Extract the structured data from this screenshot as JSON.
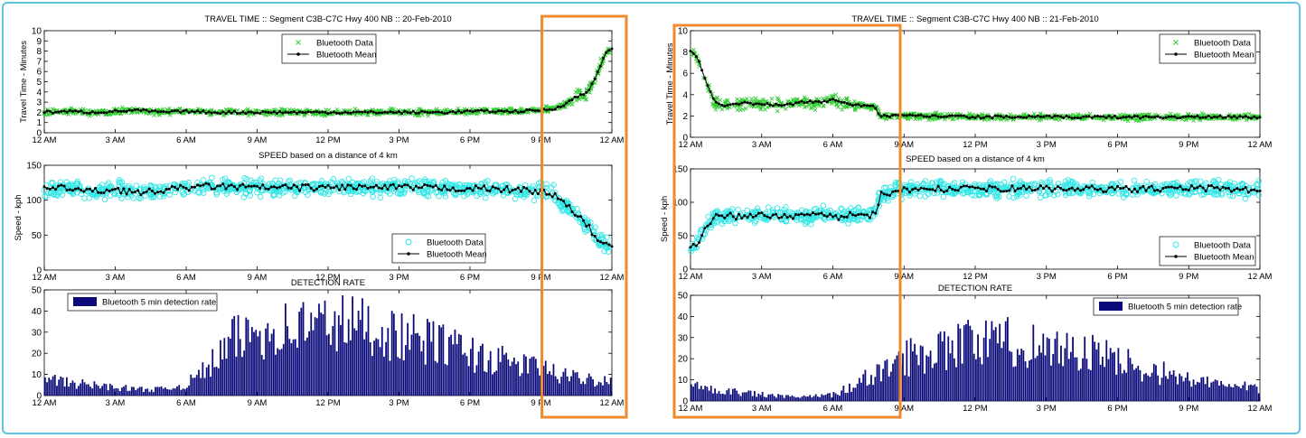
{
  "colors": {
    "frame": "#5fc3e4",
    "highlight": "#f08a2c",
    "bt_data_travel": "#33cc33",
    "bt_data_speed": "#33e6e6",
    "bt_mean": "#000000",
    "bars": "#0a0a7a"
  },
  "panels": [
    {
      "travel_title": "TRAVEL TIME ::  Segment C3B-C7C  Hwy 400 NB  :: 20-Feb-2010",
      "speed_title": "SPEED based on a distance of 4 km",
      "det_title": "DETECTION RATE",
      "highlight_window_hours": [
        21.5,
        24
      ]
    },
    {
      "travel_title": "TRAVEL TIME ::  Segment C3B-C7C  Hwy 400 NB  :: 21-Feb-2010",
      "speed_title": "SPEED based on a distance of 4 km",
      "det_title": "DETECTION RATE",
      "highlight_window_hours": [
        0,
        8
      ]
    }
  ],
  "labels": {
    "travel_ylabel": "Travel Time - Minutes",
    "speed_ylabel": "Speed - kph",
    "legend_data": "Bluetooth Data",
    "legend_mean": "Bluetooth Mean",
    "legend_bars": "Bluetooth 5 min detection rate"
  },
  "chart_data": [
    {
      "type": "scatter",
      "title": "TRAVEL TIME ::  Segment C3B-C7C  Hwy 400 NB  :: 20-Feb-2010",
      "xlabel": "",
      "ylabel": "Travel Time - Minutes",
      "x_ticks": [
        "12 AM",
        "3 AM",
        "6 AM",
        "9 AM",
        "12 PM",
        "3 PM",
        "6 PM",
        "9 PM",
        "12 AM"
      ],
      "y_ticks": [
        0,
        1,
        2,
        3,
        4,
        5,
        6,
        7,
        8,
        9,
        10
      ],
      "ylim": [
        0,
        10
      ],
      "xlim_hours": [
        0,
        24
      ],
      "legend": "top-center",
      "series": [
        {
          "name": "Bluetooth Data",
          "marker": "x",
          "color": "#33cc33"
        },
        {
          "name": "Bluetooth Mean",
          "marker": "line-dot",
          "color": "#000000",
          "x_hours": [
            0,
            1,
            2,
            3,
            4,
            5,
            6,
            7,
            8,
            9,
            10,
            11,
            12,
            13,
            14,
            15,
            16,
            17,
            18,
            19,
            20,
            21,
            21.5,
            22,
            22.5,
            23,
            23.3,
            23.6,
            23.8,
            24
          ],
          "y": [
            2.0,
            2.1,
            2.0,
            2.1,
            2.2,
            2.0,
            2.1,
            2.0,
            2.0,
            2.0,
            2.0,
            2.0,
            2.0,
            2.0,
            2.0,
            2.0,
            2.0,
            2.0,
            2.1,
            2.1,
            2.1,
            2.2,
            2.3,
            2.8,
            3.5,
            4.0,
            5.5,
            7.0,
            8.0,
            8.2
          ]
        }
      ]
    },
    {
      "type": "scatter",
      "title": "SPEED based on a distance of 4 km",
      "xlabel": "",
      "ylabel": "Speed - kph",
      "x_ticks": [
        "12 AM",
        "3 AM",
        "6 AM",
        "9 AM",
        "12 PM",
        "3 PM",
        "6 PM",
        "9 PM",
        "12 AM"
      ],
      "y_ticks": [
        0,
        50,
        100,
        150
      ],
      "ylim": [
        0,
        150
      ],
      "xlim_hours": [
        0,
        24
      ],
      "legend": "bottom-right",
      "series": [
        {
          "name": "Bluetooth Data",
          "marker": "o",
          "color": "#33e6e6"
        },
        {
          "name": "Bluetooth Mean",
          "marker": "line-dot",
          "color": "#000000",
          "x_hours": [
            0,
            1,
            2,
            3,
            4,
            5,
            6,
            7,
            8,
            9,
            10,
            11,
            12,
            13,
            14,
            15,
            16,
            17,
            18,
            19,
            20,
            21,
            21.5,
            22,
            22.5,
            23,
            23.5,
            24
          ],
          "y": [
            115,
            118,
            112,
            116,
            110,
            114,
            118,
            120,
            119,
            118,
            118,
            118,
            118,
            119,
            118,
            118,
            118,
            117,
            117,
            116,
            115,
            113,
            108,
            95,
            80,
            62,
            40,
            32
          ]
        }
      ]
    },
    {
      "type": "bar",
      "title": "DETECTION RATE",
      "xlabel": "",
      "ylabel": "",
      "x_ticks": [
        "12 AM",
        "3 AM",
        "6 AM",
        "9 AM",
        "12 PM",
        "3 PM",
        "6 PM",
        "9 PM",
        "12 AM"
      ],
      "y_ticks": [
        0,
        10,
        20,
        30,
        40,
        50
      ],
      "ylim": [
        0,
        50
      ],
      "xlim_hours": [
        0,
        24
      ],
      "legend": "top-left",
      "series": [
        {
          "name": "Bluetooth 5 min detection rate",
          "color": "#0a0a7a",
          "hourly_profile_x": [
            0,
            1,
            2,
            3,
            4,
            5,
            6,
            7,
            8,
            9,
            10,
            11,
            12,
            13,
            14,
            15,
            16,
            17,
            18,
            19,
            20,
            21,
            22,
            23,
            24
          ],
          "hourly_profile_y": [
            8,
            6,
            5,
            4,
            3,
            3,
            5,
            14,
            26,
            30,
            31,
            33,
            34,
            34,
            32,
            28,
            26,
            24,
            20,
            17,
            15,
            13,
            9,
            8,
            7
          ]
        }
      ]
    },
    {
      "type": "scatter",
      "title": "TRAVEL TIME ::  Segment C3B-C7C  Hwy 400 NB  :: 21-Feb-2010",
      "xlabel": "",
      "ylabel": "Travel Time - Minutes",
      "x_ticks": [
        "12 AM",
        "3 AM",
        "6 AM",
        "9 AM",
        "12 PM",
        "3 PM",
        "6 PM",
        "9 PM",
        "12 AM"
      ],
      "y_ticks": [
        0,
        2,
        4,
        6,
        8,
        10
      ],
      "ylim": [
        0,
        10
      ],
      "xlim_hours": [
        0,
        24
      ],
      "legend": "top-right",
      "series": [
        {
          "name": "Bluetooth Data",
          "marker": "x",
          "color": "#33cc33"
        },
        {
          "name": "Bluetooth Mean",
          "marker": "line-dot",
          "color": "#000000",
          "x_hours": [
            0,
            0.3,
            0.7,
            1,
            1.5,
            2,
            3,
            4,
            5,
            5.5,
            6,
            6.5,
            7,
            7.5,
            7.8,
            8,
            9,
            10,
            12,
            14,
            16,
            18,
            20,
            22,
            24
          ],
          "y": [
            8.2,
            7.5,
            5.0,
            3.3,
            3.0,
            3.2,
            3.1,
            3.0,
            3.4,
            3.2,
            3.6,
            3.2,
            3.0,
            2.9,
            2.8,
            2.0,
            2.0,
            2.0,
            1.9,
            1.9,
            1.9,
            1.9,
            1.9,
            1.9,
            1.9
          ]
        }
      ]
    },
    {
      "type": "scatter",
      "title": "SPEED based on a distance of 4 km",
      "xlabel": "",
      "ylabel": "Speed - kph",
      "x_ticks": [
        "12 AM",
        "3 AM",
        "6 AM",
        "9 AM",
        "12 PM",
        "3 PM",
        "6 PM",
        "9 PM",
        "12 AM"
      ],
      "y_ticks": [
        0,
        50,
        100,
        150
      ],
      "ylim": [
        0,
        150
      ],
      "xlim_hours": [
        0,
        24
      ],
      "legend": "bottom-right",
      "series": [
        {
          "name": "Bluetooth Data",
          "marker": "o",
          "color": "#33e6e6"
        },
        {
          "name": "Bluetooth Mean",
          "marker": "line-dot",
          "color": "#000000",
          "x_hours": [
            0,
            0.3,
            0.7,
            1,
            1.5,
            2,
            3,
            4,
            5,
            5.5,
            6,
            6.5,
            7,
            7.5,
            7.8,
            8,
            9,
            10,
            12,
            14,
            16,
            18,
            20,
            22,
            24
          ],
          "y": [
            30,
            40,
            65,
            78,
            80,
            79,
            80,
            81,
            78,
            84,
            76,
            80,
            82,
            80,
            82,
            112,
            118,
            120,
            120,
            121,
            120,
            120,
            120,
            121,
            118
          ]
        }
      ]
    },
    {
      "type": "bar",
      "title": "DETECTION RATE",
      "xlabel": "",
      "ylabel": "",
      "x_ticks": [
        "12 AM",
        "3 AM",
        "6 AM",
        "9 AM",
        "12 PM",
        "3 PM",
        "6 PM",
        "9 PM",
        "12 AM"
      ],
      "y_ticks": [
        0,
        10,
        20,
        30,
        40,
        50
      ],
      "ylim": [
        0,
        50
      ],
      "xlim_hours": [
        0,
        24
      ],
      "legend": "top-right",
      "series": [
        {
          "name": "Bluetooth 5 min detection rate",
          "color": "#0a0a7a",
          "hourly_profile_x": [
            0,
            1,
            2,
            3,
            4,
            5,
            6,
            7,
            8,
            9,
            10,
            11,
            12,
            13,
            14,
            15,
            16,
            17,
            18,
            19,
            20,
            21,
            22,
            23,
            24
          ],
          "hourly_profile_y": [
            7,
            6,
            4,
            3,
            2,
            2,
            3,
            8,
            14,
            20,
            24,
            27,
            28,
            28,
            27,
            26,
            24,
            22,
            19,
            16,
            13,
            10,
            8,
            7,
            6
          ]
        }
      ]
    }
  ]
}
